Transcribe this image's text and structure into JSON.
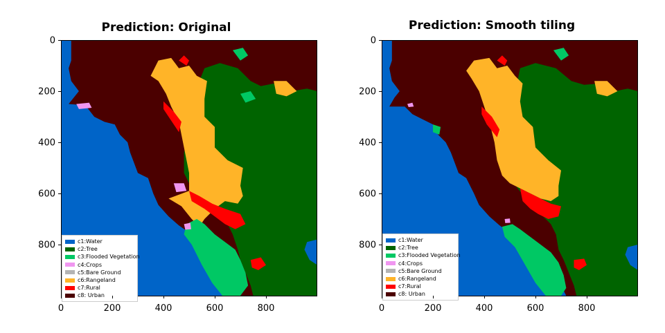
{
  "chart_data": [
    {
      "type": "heatmap",
      "title": "Prediction: Original",
      "xlabel": "",
      "ylabel": "",
      "xlim": [
        0,
        1000
      ],
      "ylim": [
        1000,
        0
      ],
      "xticks": [
        "0",
        "200",
        "400",
        "600",
        "800"
      ],
      "yticks": [
        "0",
        "200",
        "400",
        "600",
        "800"
      ],
      "legend": {
        "placement": "lower-left",
        "entries": [
          {
            "label": "c1:Water",
            "color": "#0064c8"
          },
          {
            "label": "c2:Tree",
            "color": "#006400"
          },
          {
            "label": "c3:Flooded Vegetation",
            "color": "#00c864"
          },
          {
            "label": "c4:Crops",
            "color": "#f096f0"
          },
          {
            "label": "c5:Bare Ground",
            "color": "#b4b4b4"
          },
          {
            "label": "c6:Rangeland",
            "color": "#ffb428"
          },
          {
            "label": "c7:Rural",
            "color": "#ff0000"
          },
          {
            "label": "c8: Urban",
            "color": "#4b0000"
          }
        ]
      }
    },
    {
      "type": "heatmap",
      "title": "Prediction: Smooth tiling",
      "xlabel": "",
      "ylabel": "",
      "xlim": [
        0,
        1000
      ],
      "ylim": [
        1000,
        0
      ],
      "xticks": [
        "0",
        "200",
        "400",
        "600",
        "800"
      ],
      "yticks": [
        "0",
        "200",
        "400",
        "600",
        "800"
      ],
      "legend": {
        "placement": "lower-left",
        "entries": [
          {
            "label": "c1:Water",
            "color": "#0064c8"
          },
          {
            "label": "c2:Tree",
            "color": "#006400"
          },
          {
            "label": "c3:Flooded Vegetation",
            "color": "#00c864"
          },
          {
            "label": "c4:Crops",
            "color": "#f096f0"
          },
          {
            "label": "c5:Bare Ground",
            "color": "#b4b4b4"
          },
          {
            "label": "c6:Rangeland",
            "color": "#ffb428"
          },
          {
            "label": "c7:Rural",
            "color": "#ff0000"
          },
          {
            "label": "c8: Urban",
            "color": "#4b0000"
          }
        ]
      }
    }
  ]
}
